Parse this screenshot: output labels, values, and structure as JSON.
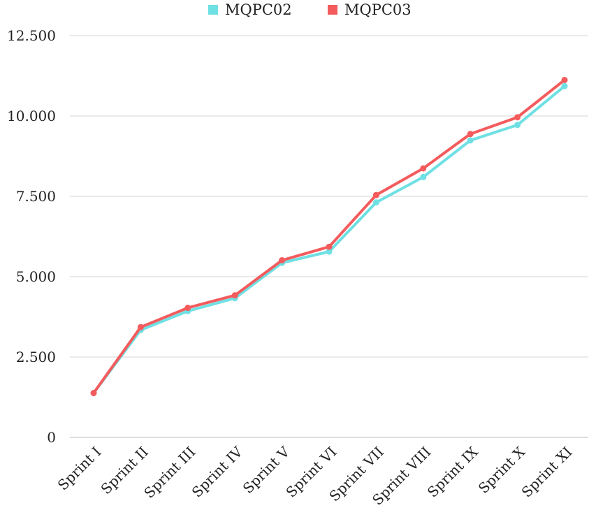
{
  "chart_data": {
    "type": "line",
    "title": "",
    "xlabel": "",
    "ylabel": "",
    "categories": [
      "Sprint I",
      "Sprint II",
      "Sprint III",
      "Sprint IV",
      "Sprint V",
      "Sprint VI",
      "Sprint VII",
      "Sprint VIII",
      "Sprint IX",
      "Sprint X",
      "Sprint XI"
    ],
    "ylim": [
      0,
      12500
    ],
    "yticks": [
      0,
      2500,
      5000,
      7500,
      10000,
      12500
    ],
    "ytick_labels": [
      "0",
      "2.500",
      "5.000",
      "7.500",
      "10.000",
      "12.500"
    ],
    "grid": true,
    "legend_position": "top-center",
    "series": [
      {
        "name": "MQPC02",
        "color": "#6fe0e3",
        "values": [
          1380,
          3340,
          3930,
          4330,
          5430,
          5780,
          7310,
          8100,
          9240,
          9720,
          10930
        ]
      },
      {
        "name": "MQPC03",
        "color": "#f35b5d",
        "values": [
          1380,
          3430,
          4030,
          4420,
          5510,
          5930,
          7540,
          8370,
          9440,
          9960,
          11120
        ]
      }
    ]
  }
}
